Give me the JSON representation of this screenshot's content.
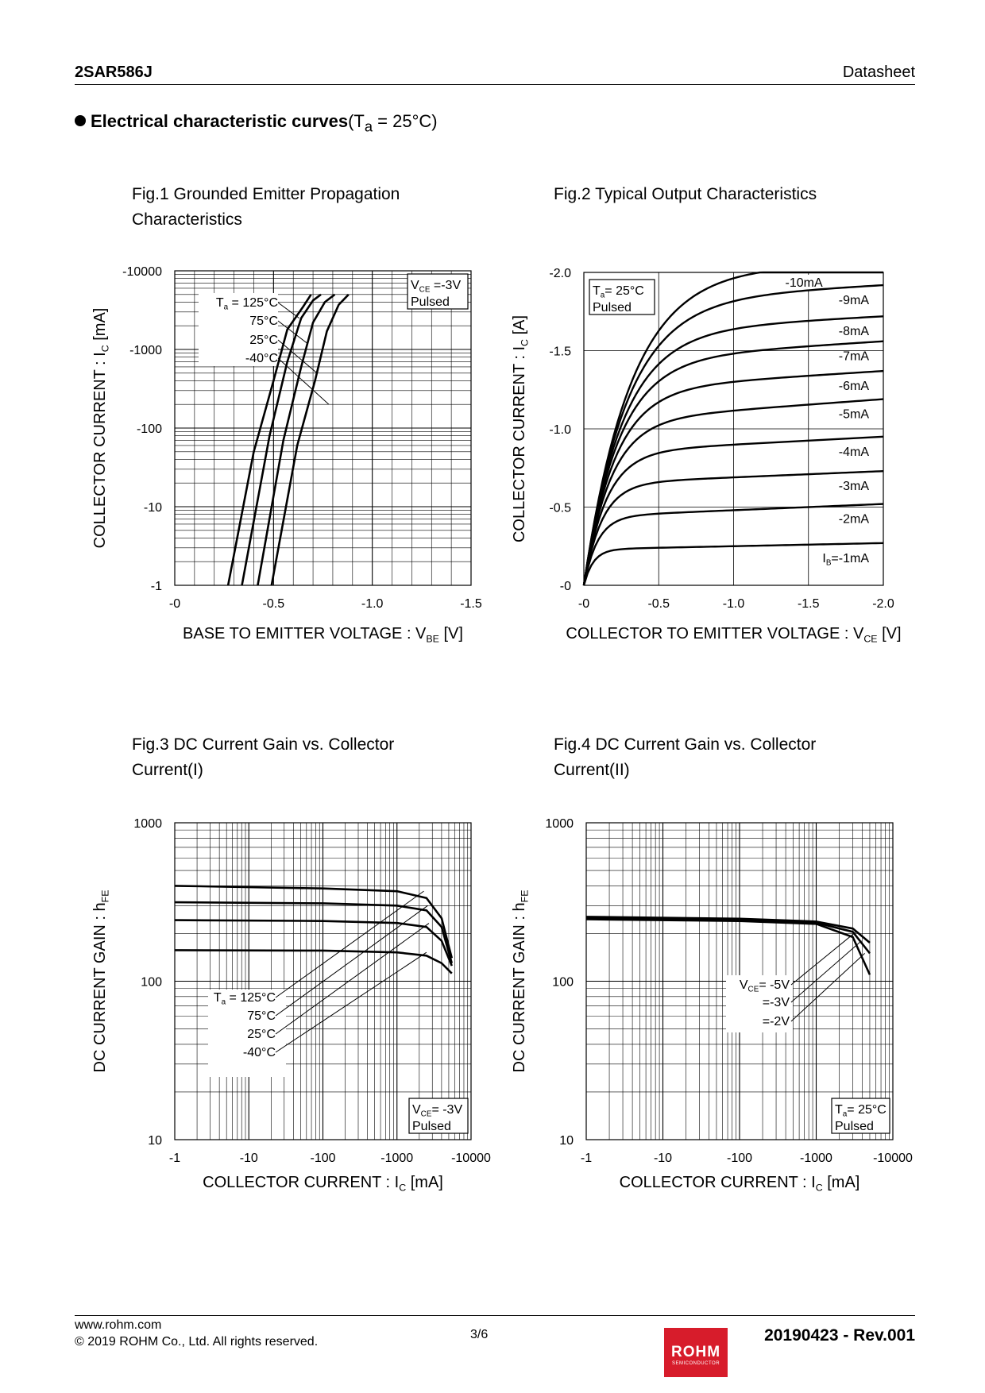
{
  "header": {
    "part_number": "2SAR586J",
    "doc_type": "Datasheet"
  },
  "section": {
    "title_bold": "Electrical characteristic curves",
    "cond_pre": "(T",
    "cond_sub": "a",
    "cond_post": " = 25°C)"
  },
  "chart_data": [
    {
      "id": "fig1",
      "type": "line",
      "title": "Fig.1 Grounded Emitter Propagation Characteristics",
      "xlabel": "BASE TO EMITTER VOLTAGE : V",
      "xlabel_sub": "BE",
      "xlabel_post": " [V]",
      "ylabel": "COLLECTOR CURRENT : I",
      "ylabel_sub": "C",
      "ylabel_post": " [mA]",
      "xlim": [
        0,
        -1.5
      ],
      "ylim": [
        -1,
        -10000
      ],
      "yscale": "log",
      "xticks": [
        "-0",
        "-0.5",
        "-1.0",
        "-1.5"
      ],
      "yticks": [
        "-10000",
        "-1000",
        "-100",
        "-10",
        "-1"
      ],
      "box_lines": [
        {
          "t": "V",
          "s": "CE",
          "p": " =-3V"
        },
        {
          "t": "Pulsed",
          "s": "",
          "p": ""
        }
      ],
      "legend_lines": [
        {
          "t": "T",
          "s": "a",
          "p": " = 125°C"
        },
        {
          "t": "75°C",
          "s": "",
          "p": ""
        },
        {
          "t": "25°C",
          "s": "",
          "p": ""
        },
        {
          "t": "-40°C",
          "s": "",
          "p": ""
        }
      ],
      "series": [
        {
          "name": "125°C",
          "points": [
            [
              -0.27,
              -1
            ],
            [
              -0.4,
              -50
            ],
            [
              -0.5,
              -400
            ],
            [
              -0.57,
              -1800
            ],
            [
              -0.65,
              -3500
            ],
            [
              -0.69,
              -5000
            ]
          ]
        },
        {
          "name": "75°C",
          "points": [
            [
              -0.34,
              -1
            ],
            [
              -0.48,
              -80
            ],
            [
              -0.57,
              -700
            ],
            [
              -0.64,
              -2500
            ],
            [
              -0.7,
              -4200
            ],
            [
              -0.74,
              -5000
            ]
          ]
        },
        {
          "name": "25°C",
          "points": [
            [
              -0.42,
              -1
            ],
            [
              -0.55,
              -70
            ],
            [
              -0.64,
              -600
            ],
            [
              -0.7,
              -2200
            ],
            [
              -0.76,
              -4000
            ],
            [
              -0.81,
              -5000
            ]
          ]
        },
        {
          "name": "-40°C",
          "points": [
            [
              -0.49,
              -1
            ],
            [
              -0.62,
              -60
            ],
            [
              -0.71,
              -400
            ],
            [
              -0.77,
              -1700
            ],
            [
              -0.83,
              -3700
            ],
            [
              -0.88,
              -5000
            ]
          ]
        }
      ]
    },
    {
      "id": "fig2",
      "type": "line",
      "title": "Fig.2 Typical Output Characteristics",
      "xlabel": "COLLECTOR TO EMITTER VOLTAGE : V",
      "xlabel_sub": "CE",
      "xlabel_post": " [V]",
      "ylabel": "COLLECTOR CURRENT : I",
      "ylabel_sub": "C",
      "ylabel_post": " [A]",
      "xlim": [
        0,
        -2.0
      ],
      "ylim": [
        0,
        -2.0
      ],
      "yscale": "linear",
      "xticks": [
        "-0",
        "-0.5",
        "-1.0",
        "-1.5",
        "-2.0"
      ],
      "yticks": [
        "-2.0",
        "-1.5",
        "-1.0",
        "-0.5",
        "-0"
      ],
      "box_lines": [
        {
          "t": "T",
          "s": "a",
          "p": "= 25°C"
        },
        {
          "t": "Pulsed",
          "s": "",
          "p": ""
        }
      ],
      "series": [
        {
          "name": "-10mA",
          "sat": -2.05,
          "slope": 0
        },
        {
          "name": "-9mA",
          "sat": -1.82,
          "slope": 0.05
        },
        {
          "name": "-8mA",
          "sat": -1.62,
          "slope": 0.05
        },
        {
          "name": "-7mA",
          "sat": -1.44,
          "slope": 0.06
        },
        {
          "name": "-6mA",
          "sat": -1.25,
          "slope": 0.06
        },
        {
          "name": "-5mA",
          "sat": -1.05,
          "slope": 0.07
        },
        {
          "name": "-4mA",
          "sat": -0.85,
          "slope": 0.05
        },
        {
          "name": "-3mA",
          "sat": -0.65,
          "slope": 0.04
        },
        {
          "name": "-2mA",
          "sat": -0.44,
          "slope": 0.04
        },
        {
          "name": "I",
          "sub": "B",
          "post": "=-1mA",
          "sat": -0.23,
          "slope": 0.02
        }
      ]
    },
    {
      "id": "fig3",
      "type": "line",
      "title": "Fig.3 DC Current Gain vs. Collector Current(I)",
      "xlabel": "COLLECTOR CURRENT : I",
      "xlabel_sub": "C",
      "xlabel_post": " [mA]",
      "ylabel": "DC CURRENT GAIN : h",
      "ylabel_sub": "FE",
      "ylabel_post": "",
      "xlim": [
        -1,
        -10000
      ],
      "ylim": [
        10,
        1000
      ],
      "xscale": "log",
      "yscale": "log",
      "xticks": [
        "-1",
        "-10",
        "-100",
        "-1000",
        "-10000"
      ],
      "yticks": [
        "1000",
        "100",
        "10"
      ],
      "box_lines": [
        {
          "t": "V",
          "s": "CE",
          "p": "= -3V"
        },
        {
          "t": "Pulsed",
          "s": "",
          "p": ""
        }
      ],
      "legend_lines": [
        {
          "t": "T",
          "s": "a",
          "p": " = 125°C"
        },
        {
          "t": "75°C",
          "s": "",
          "p": ""
        },
        {
          "t": "25°C",
          "s": "",
          "p": ""
        },
        {
          "t": "-40°C",
          "s": "",
          "p": ""
        }
      ],
      "series": [
        {
          "name": "125°C",
          "points": [
            [
              -1,
              400
            ],
            [
              -100,
              385
            ],
            [
              -1000,
              370
            ],
            [
              -2500,
              335
            ],
            [
              -4000,
              250
            ],
            [
              -5500,
              140
            ]
          ]
        },
        {
          "name": "75°C",
          "points": [
            [
              -1,
              315
            ],
            [
              -100,
              310
            ],
            [
              -1000,
              300
            ],
            [
              -2500,
              280
            ],
            [
              -4000,
              220
            ],
            [
              -5500,
              130
            ]
          ]
        },
        {
          "name": "25°C",
          "points": [
            [
              -1,
              243
            ],
            [
              -100,
              240
            ],
            [
              -1000,
              233
            ],
            [
              -2500,
              220
            ],
            [
              -4000,
              180
            ],
            [
              -5500,
              125
            ]
          ]
        },
        {
          "name": "-40°C",
          "points": [
            [
              -1,
              157
            ],
            [
              -100,
              156
            ],
            [
              -1000,
              152
            ],
            [
              -2500,
              145
            ],
            [
              -4000,
              130
            ],
            [
              -5500,
              112
            ]
          ]
        }
      ]
    },
    {
      "id": "fig4",
      "type": "line",
      "title": "Fig.4 DC Current Gain vs. Collector Current(II)",
      "xlabel": "COLLECTOR CURRENT : I",
      "xlabel_sub": "C",
      "xlabel_post": " [mA]",
      "ylabel": "DC CURRENT GAIN : h",
      "ylabel_sub": "FE",
      "ylabel_post": "",
      "xlim": [
        -1,
        -10000
      ],
      "ylim": [
        10,
        1000
      ],
      "xscale": "log",
      "yscale": "log",
      "xticks": [
        "-1",
        "-10",
        "-100",
        "-1000",
        "-10000"
      ],
      "yticks": [
        "1000",
        "100",
        "10"
      ],
      "box_lines": [
        {
          "t": "T",
          "s": "a",
          "p": "= 25°C"
        },
        {
          "t": "Pulsed",
          "s": "",
          "p": ""
        }
      ],
      "legend_lines": [
        {
          "t": "V",
          "s": "CE",
          "p": "= -5V"
        },
        {
          "t": "=-3V",
          "s": "",
          "p": ""
        },
        {
          "t": "=-2V",
          "s": "",
          "p": ""
        }
      ],
      "series": [
        {
          "name": "-5V",
          "points": [
            [
              -1,
              255
            ],
            [
              -100,
              248
            ],
            [
              -1000,
              238
            ],
            [
              -3000,
              215
            ],
            [
              -5000,
              175
            ]
          ]
        },
        {
          "name": "-3V",
          "points": [
            [
              -1,
              250
            ],
            [
              -100,
              244
            ],
            [
              -1000,
              234
            ],
            [
              -3000,
              205
            ],
            [
              -5000,
              150
            ]
          ]
        },
        {
          "name": "-2V",
          "points": [
            [
              -1,
              246
            ],
            [
              -100,
              240
            ],
            [
              -1000,
              230
            ],
            [
              -3000,
              190
            ],
            [
              -5000,
              110
            ]
          ]
        }
      ]
    }
  ],
  "footer": {
    "url": "www.rohm.com",
    "copyright": "© 2019 ROHM Co., Ltd. All rights reserved.",
    "page": "3/6",
    "revision": "20190423 - Rev.001",
    "logo_text": "ROHM",
    "logo_sub": "SEMICONDUCTOR"
  }
}
